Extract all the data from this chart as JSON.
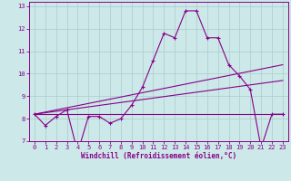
{
  "xlabel": "Windchill (Refroidissement éolien,°C)",
  "bg_color": "#cce8e8",
  "line_color": "#880088",
  "grid_color": "#aacccc",
  "x_values": [
    0,
    1,
    2,
    3,
    4,
    5,
    6,
    7,
    8,
    9,
    10,
    11,
    12,
    13,
    14,
    15,
    16,
    17,
    18,
    19,
    20,
    21,
    22,
    23
  ],
  "series1": [
    8.2,
    7.7,
    8.1,
    8.4,
    6.5,
    8.1,
    8.1,
    7.8,
    8.0,
    8.6,
    9.4,
    10.6,
    11.8,
    11.6,
    12.8,
    12.8,
    11.6,
    11.6,
    10.4,
    9.9,
    9.3,
    6.7,
    8.2,
    8.2
  ],
  "flat_line_y": 8.2,
  "ascending1_y0": 8.2,
  "ascending1_y1": 10.4,
  "ascending2_y0": 8.2,
  "ascending2_y1": 9.7,
  "ylim": [
    7.0,
    13.2
  ],
  "xlim_min": -0.5,
  "xlim_max": 23.5,
  "yticks": [
    7,
    8,
    9,
    10,
    11,
    12,
    13
  ],
  "xticks": [
    0,
    1,
    2,
    3,
    4,
    5,
    6,
    7,
    8,
    9,
    10,
    11,
    12,
    13,
    14,
    15,
    16,
    17,
    18,
    19,
    20,
    21,
    22,
    23
  ],
  "tick_fontsize": 5.0,
  "xlabel_fontsize": 5.5
}
